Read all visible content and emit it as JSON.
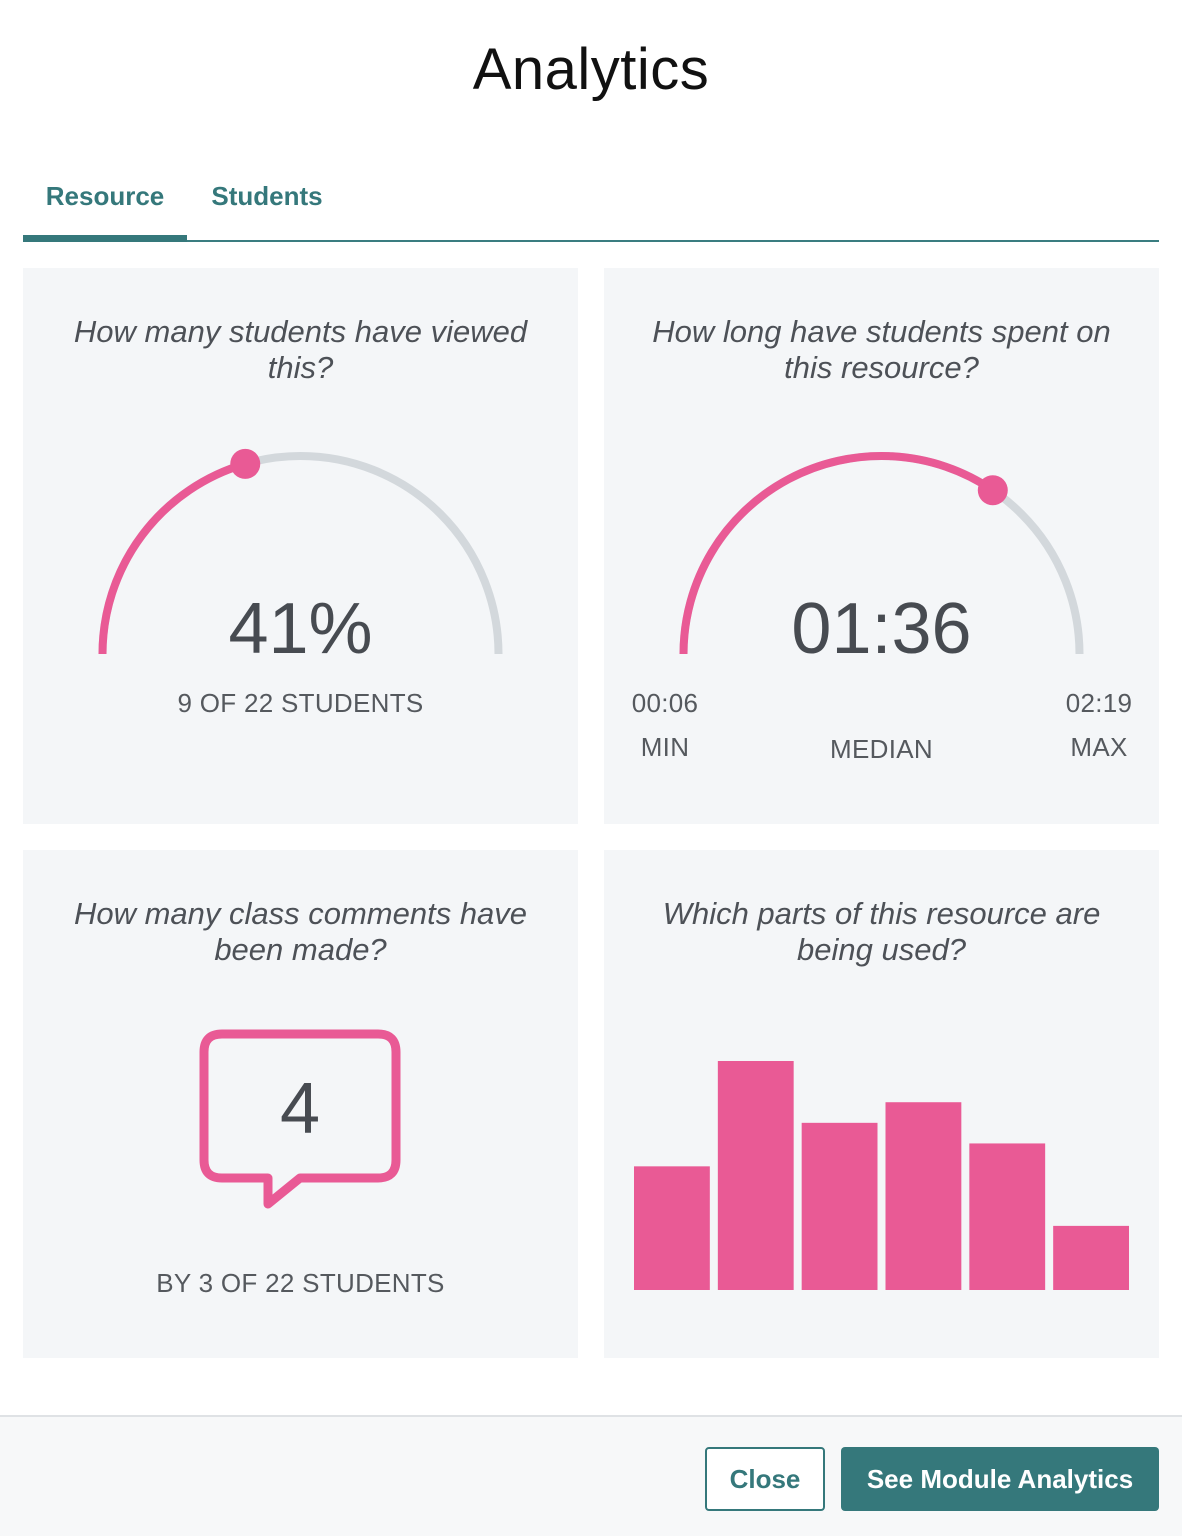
{
  "page": {
    "title": "Analytics"
  },
  "tabs": [
    {
      "label": "Resource",
      "active": true
    },
    {
      "label": "Students",
      "active": false
    }
  ],
  "colors": {
    "accent": "#35787b",
    "pink": "#e95a95",
    "track": "#d3d8dc",
    "card": "#f4f6f8"
  },
  "views": {
    "question": "How many students have viewed this?",
    "value": "41%",
    "fraction": 0.41,
    "caption": "9 OF 22 STUDENTS"
  },
  "time": {
    "question": "How long have students spent on this resource?",
    "median": "01:36",
    "min": "00:06",
    "max": "02:19",
    "min_label": "MIN",
    "median_label": "MEDIAN",
    "max_label": "MAX",
    "fraction": 0.69
  },
  "comments": {
    "question": "How many class comments have been made?",
    "value": "4",
    "caption": "BY 3 OF 22 STUDENTS",
    "icon": "speech-bubble-icon"
  },
  "parts": {
    "question": "Which parts of this resource are being used?"
  },
  "chart_data": {
    "type": "bar",
    "values": [
      0.54,
      1.0,
      0.73,
      0.82,
      0.64,
      0.28
    ],
    "ylim": [
      0,
      1
    ],
    "grid": false
  },
  "footer": {
    "close_label": "Close",
    "module_label": "See Module Analytics"
  }
}
